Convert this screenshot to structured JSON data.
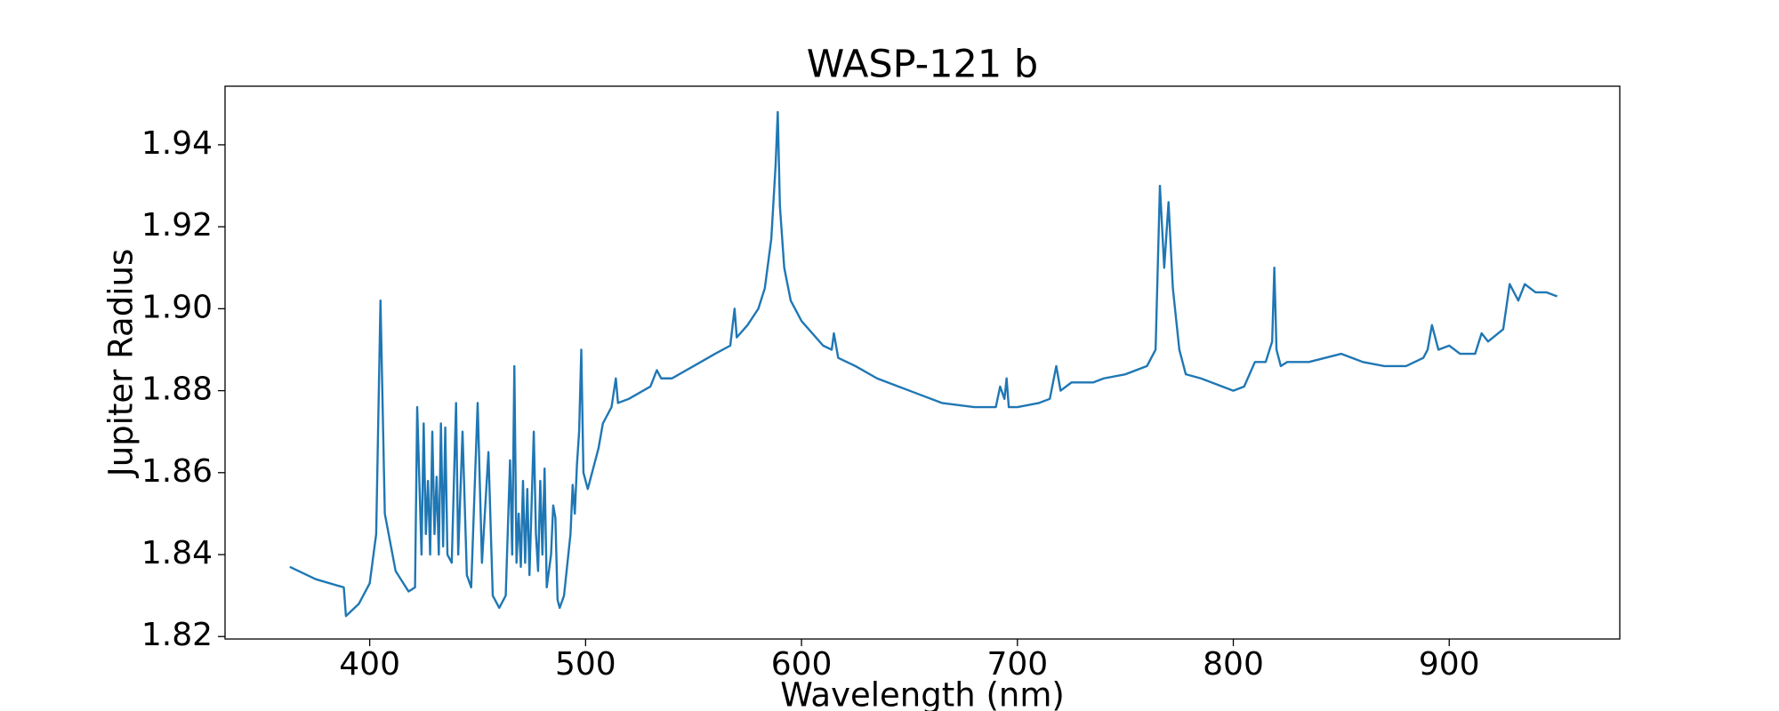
{
  "chart_data": {
    "type": "line",
    "title": "WASP-121 b",
    "xlabel": "Wavelength (nm)",
    "ylabel": "Jupiter Radius",
    "x": [
      363,
      375,
      388,
      389,
      395,
      400,
      403,
      405,
      407,
      412,
      418,
      421,
      422,
      424,
      425,
      426,
      427,
      428,
      429,
      430,
      431,
      432,
      433,
      434,
      435,
      436,
      438,
      440,
      441,
      443,
      445,
      447,
      450,
      452,
      455,
      457,
      460,
      463,
      465,
      466,
      467,
      468,
      469,
      470,
      471,
      472,
      473,
      474,
      476,
      477,
      478,
      479,
      480,
      481,
      482,
      484,
      485,
      486,
      487,
      488,
      490,
      492,
      493,
      494,
      495,
      496,
      497,
      498,
      499,
      501,
      503,
      506,
      508,
      510,
      512,
      514,
      515,
      520,
      530,
      533,
      535,
      540,
      550,
      560,
      567,
      569,
      570,
      575,
      580,
      583,
      586,
      588,
      589,
      590,
      592,
      595,
      600,
      610,
      614,
      615,
      617,
      625,
      635,
      645,
      655,
      665,
      680,
      690,
      692,
      694,
      695,
      696,
      700,
      710,
      715,
      718,
      720,
      725,
      735,
      740,
      750,
      760,
      764,
      766,
      768,
      770,
      772,
      775,
      778,
      785,
      795,
      800,
      805,
      810,
      815,
      818,
      819,
      820,
      822,
      825,
      835,
      850,
      860,
      870,
      880,
      888,
      890,
      892,
      895,
      900,
      905,
      912,
      915,
      918,
      925,
      928,
      932,
      935,
      940,
      945,
      950
    ],
    "series": [
      {
        "name": "WASP-121 b",
        "color": "#1f77b4",
        "values": [
          1.837,
          1.834,
          1.832,
          1.825,
          1.828,
          1.833,
          1.845,
          1.902,
          1.85,
          1.836,
          1.831,
          1.832,
          1.876,
          1.84,
          1.872,
          1.845,
          1.858,
          1.84,
          1.87,
          1.845,
          1.859,
          1.84,
          1.872,
          1.842,
          1.871,
          1.84,
          1.838,
          1.877,
          1.84,
          1.87,
          1.835,
          1.832,
          1.877,
          1.838,
          1.865,
          1.83,
          1.827,
          1.83,
          1.863,
          1.84,
          1.886,
          1.838,
          1.85,
          1.837,
          1.858,
          1.838,
          1.856,
          1.835,
          1.87,
          1.845,
          1.836,
          1.858,
          1.84,
          1.861,
          1.832,
          1.84,
          1.852,
          1.849,
          1.829,
          1.827,
          1.83,
          1.84,
          1.845,
          1.857,
          1.85,
          1.862,
          1.87,
          1.89,
          1.86,
          1.856,
          1.86,
          1.866,
          1.872,
          1.874,
          1.876,
          1.883,
          1.877,
          1.878,
          1.881,
          1.885,
          1.883,
          1.883,
          1.886,
          1.889,
          1.891,
          1.9,
          1.893,
          1.896,
          1.9,
          1.905,
          1.917,
          1.935,
          1.948,
          1.925,
          1.91,
          1.902,
          1.897,
          1.891,
          1.89,
          1.894,
          1.888,
          1.886,
          1.883,
          1.881,
          1.879,
          1.877,
          1.876,
          1.876,
          1.881,
          1.878,
          1.883,
          1.876,
          1.876,
          1.877,
          1.878,
          1.886,
          1.88,
          1.882,
          1.882,
          1.883,
          1.884,
          1.886,
          1.89,
          1.93,
          1.91,
          1.926,
          1.905,
          1.89,
          1.884,
          1.883,
          1.881,
          1.88,
          1.881,
          1.887,
          1.887,
          1.892,
          1.91,
          1.89,
          1.886,
          1.887,
          1.887,
          1.889,
          1.887,
          1.886,
          1.886,
          1.888,
          1.89,
          1.896,
          1.89,
          1.891,
          1.889,
          1.889,
          1.894,
          1.892,
          1.895,
          1.906,
          1.902,
          1.906,
          1.904,
          1.904,
          1.903
        ]
      }
    ],
    "xlim": [
      333,
      979
    ],
    "xticks": [
      400,
      500,
      600,
      700,
      800,
      900
    ],
    "ylim": [
      1.8194,
      1.9543
    ],
    "yticks": [
      1.82,
      1.84,
      1.86,
      1.88,
      {
        "value": 1.9,
        "label": "1.90"
      },
      1.92,
      1.94
    ]
  }
}
